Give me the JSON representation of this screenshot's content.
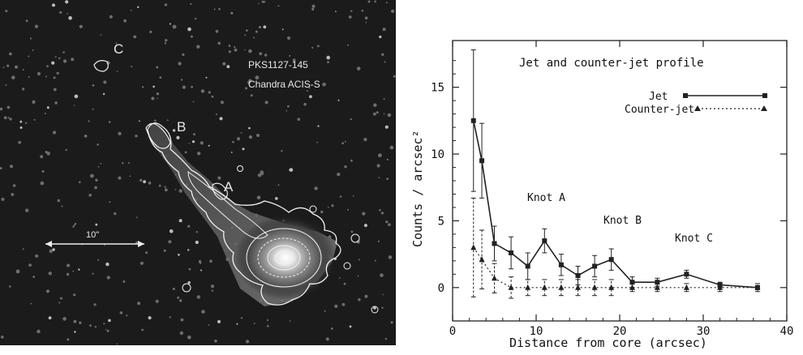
{
  "image_panel": {
    "object_name": "PKS1127-145",
    "instrument": "Chandra ACIS-S",
    "knot_labels": [
      "A",
      "B",
      "C"
    ],
    "scale_bar_label": "10\""
  },
  "chart_data": {
    "type": "line",
    "title": "Jet and counter-jet profile",
    "xlabel": "Distance from core (arcsec)",
    "ylabel": "Counts / arcsec²",
    "xlim": [
      0,
      40
    ],
    "ylim": [
      -2.5,
      18.5
    ],
    "x_ticks": [
      0,
      10,
      20,
      30,
      40
    ],
    "y_ticks": [
      0,
      5,
      10,
      15
    ],
    "legend_position": "top-right",
    "series": [
      {
        "name": "Jet",
        "style": "solid",
        "marker": "square",
        "x": [
          2.5,
          3.5,
          5,
          7,
          9,
          11,
          13,
          15,
          17,
          19,
          21.5,
          24.5,
          28,
          32,
          36.5
        ],
        "y": [
          12.5,
          9.5,
          3.3,
          2.6,
          1.6,
          3.5,
          1.7,
          0.9,
          1.6,
          2.1,
          0.4,
          0.4,
          1.0,
          0.2,
          0.0
        ],
        "yerr": [
          5.3,
          2.8,
          1.3,
          1.2,
          1.0,
          0.9,
          0.8,
          0.7,
          0.8,
          0.8,
          0.4,
          0.3,
          0.3,
          0.2,
          0.15
        ]
      },
      {
        "name": "Counter-jet",
        "style": "dotted",
        "marker": "triangle",
        "x": [
          2.5,
          3.5,
          5,
          7,
          9,
          11,
          13,
          15,
          17,
          19,
          21.5,
          24.5,
          28,
          32,
          36.5
        ],
        "y": [
          3.0,
          2.1,
          0.7,
          0.0,
          0.0,
          0.0,
          0.0,
          0.0,
          0.0,
          0.0,
          0.0,
          0.0,
          0.0,
          0.0,
          0.0
        ],
        "yerr": [
          3.7,
          2.2,
          1.1,
          0.8,
          0.6,
          0.6,
          0.6,
          0.6,
          0.6,
          0.6,
          0.3,
          0.3,
          0.3,
          0.3,
          0.3
        ]
      }
    ],
    "annotations": [
      {
        "text": "Knot A",
        "x": 10.5,
        "y": 5.7
      },
      {
        "text": "Knot B",
        "x": 19.5,
        "y": 3.7
      },
      {
        "text": "Knot C",
        "x": 29.5,
        "y": 2.1
      }
    ]
  }
}
